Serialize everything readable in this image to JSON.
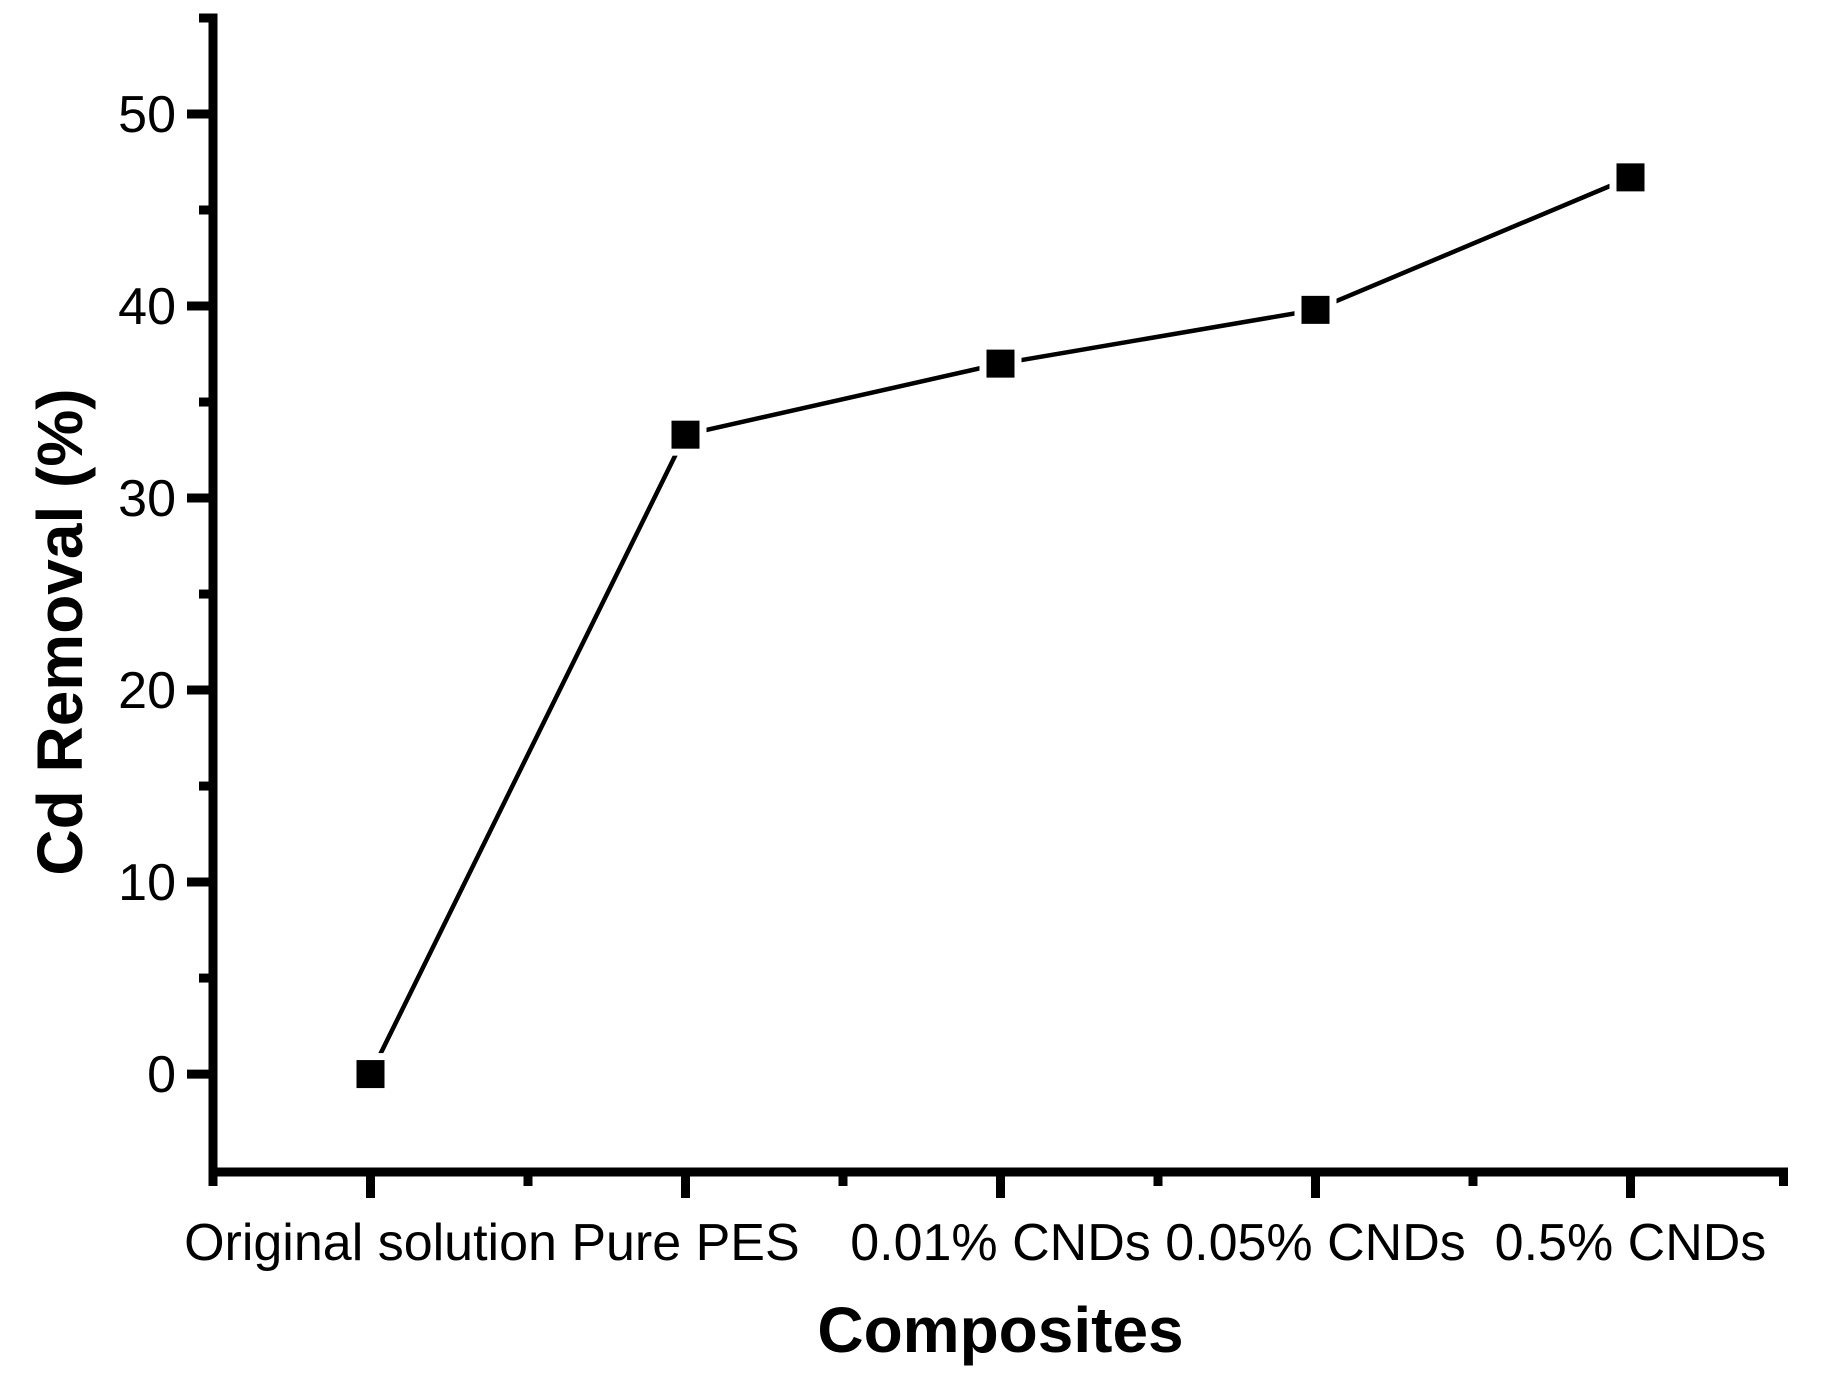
{
  "figure": {
    "background": "#ffffff",
    "foreground": "#000000"
  },
  "chart_data": {
    "type": "line",
    "categories": [
      "Original solution",
      "Pure PES",
      "0.01% CNDs",
      "0.05% CNDs",
      "0.5% CNDs"
    ],
    "values": [
      0,
      33.3,
      37.0,
      39.8,
      46.7
    ],
    "title": "",
    "xlabel": "Composites",
    "ylabel": "Cd Removal (%)",
    "ylim": [
      -5.1,
      55
    ],
    "yticks_major": [
      0,
      10,
      20,
      30,
      40,
      50
    ],
    "yticks_minor": [
      5,
      15,
      25,
      35,
      45,
      55
    ],
    "ytick_labels": [
      "0",
      "10",
      "20",
      "30",
      "40",
      "50"
    ],
    "x_minor_ticks_between_categories": true,
    "grid": false,
    "legend": "none",
    "marker": "filled-square",
    "line_color": "#000000",
    "marker_color": "#000000",
    "axis_color": "#000000"
  }
}
